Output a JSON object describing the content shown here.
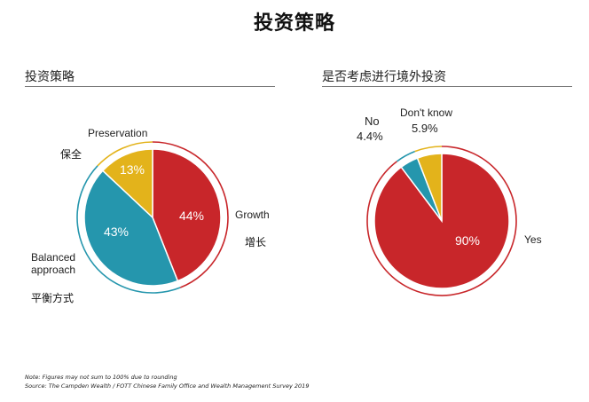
{
  "title": "投资策略",
  "chart_data": [
    {
      "type": "pie",
      "title": "投资策略",
      "slices": [
        {
          "label": "Growth",
          "label_cn": "增长",
          "value": 44,
          "value_label": "44%",
          "color": "#c8262a"
        },
        {
          "label": "Balanced approach",
          "label_line1": "Balanced",
          "label_line2": "approach",
          "label_cn": "平衡方式",
          "value": 43,
          "value_label": "43%",
          "color": "#2596ad"
        },
        {
          "label": "Preservation",
          "label_cn": "保全",
          "value": 13,
          "value_label": "13%",
          "color": "#e3b31b"
        }
      ]
    },
    {
      "type": "pie",
      "title": "是否考虑进行境外投资",
      "slices": [
        {
          "label": "Yes",
          "value": 90,
          "value_label": "90%",
          "color": "#c8262a"
        },
        {
          "label": "No",
          "value": 4.4,
          "value_label": "4.4%",
          "color": "#2596ad"
        },
        {
          "label": "Don't know",
          "value": 5.9,
          "value_label": "5.9%",
          "color": "#e3b31b"
        }
      ]
    }
  ],
  "footer": {
    "note": "Note: Figures may not sum to 100% due to rounding",
    "source": "Source: The Campden Wealth / FOTT Chinese Family Office and Wealth Management Survey 2019"
  }
}
